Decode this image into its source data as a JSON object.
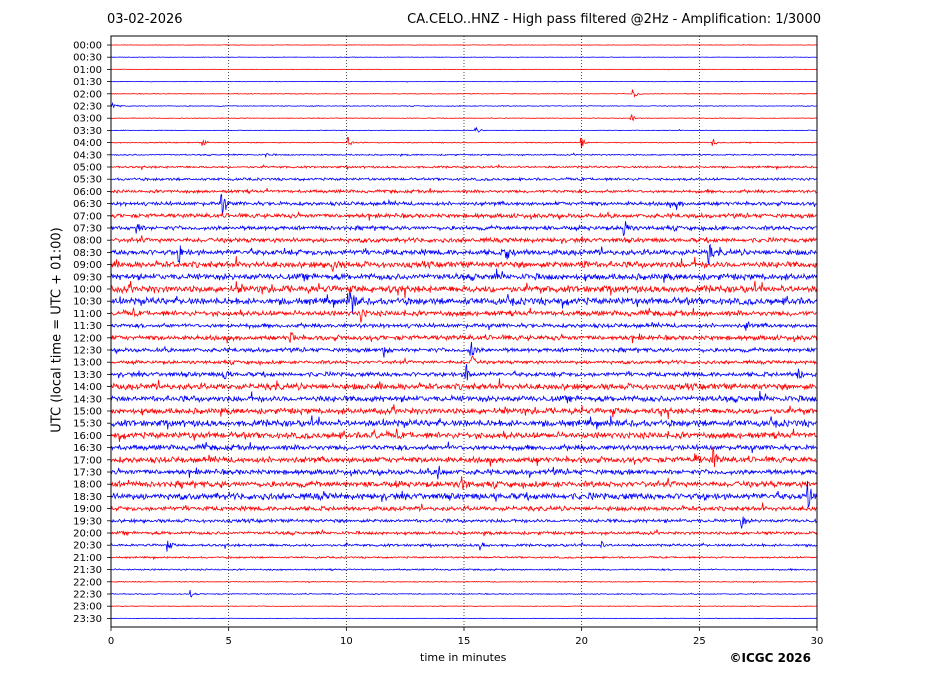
{
  "header": {
    "date": "03-02-2026",
    "title": "CA.CELO..HNZ - High pass filtered @2Hz - Amplification: 1/3000"
  },
  "footer": {
    "copyright": "©ICGC 2026"
  },
  "chart_data": {
    "type": "line",
    "title": "CA.CELO..HNZ - High pass filtered @2Hz - Amplification: 1/3000",
    "xlabel": "time in minutes",
    "ylabel": "UTC (local time = UTC + 01:00)",
    "xlim": [
      0,
      30
    ],
    "xticks": [
      0,
      5,
      10,
      15,
      20,
      25,
      30
    ],
    "vertical_gridlines": [
      5,
      10,
      15,
      20,
      25
    ],
    "grid": "dotted vertical lines at 5-minute intervals",
    "row_labels": [
      "00:00",
      "00:30",
      "01:00",
      "01:30",
      "02:00",
      "02:30",
      "03:00",
      "03:30",
      "04:00",
      "04:30",
      "05:00",
      "05:30",
      "06:00",
      "06:30",
      "07:00",
      "07:30",
      "08:00",
      "08:30",
      "09:00",
      "09:30",
      "10:00",
      "10:30",
      "11:00",
      "11:30",
      "12:00",
      "12:30",
      "13:00",
      "13:30",
      "14:00",
      "14:30",
      "15:00",
      "15:30",
      "16:00",
      "16:30",
      "17:00",
      "17:30",
      "18:00",
      "18:30",
      "19:00",
      "19:30",
      "20:00",
      "20:30",
      "21:00",
      "21:30",
      "22:00",
      "22:30",
      "23:00",
      "23:30"
    ],
    "trace_colors": [
      "#ff0000",
      "#0000ff"
    ],
    "noise_level": [
      0.3,
      0.3,
      0.3,
      0.3,
      0.4,
      0.5,
      0.4,
      0.4,
      0.6,
      0.8,
      1.2,
      1.5,
      1.8,
      2.2,
      2.5,
      2.4,
      2.6,
      3.2,
      3.6,
      3.6,
      4.0,
      4.0,
      3.0,
      2.4,
      2.8,
      2.4,
      2.0,
      2.6,
      3.6,
      3.4,
      3.4,
      3.8,
      3.6,
      3.0,
      3.4,
      3.0,
      3.4,
      3.8,
      2.6,
      2.0,
      1.8,
      1.5,
      1.0,
      0.9,
      0.5,
      0.6,
      0.4,
      0.3
    ],
    "events": [
      {
        "row": 4,
        "minute": 22.2,
        "amp": 6
      },
      {
        "row": 5,
        "minute": 0.1,
        "amp": 4
      },
      {
        "row": 6,
        "minute": 22.1,
        "amp": 5
      },
      {
        "row": 7,
        "minute": 15.5,
        "amp": 4
      },
      {
        "row": 8,
        "minute": 3.9,
        "amp": 4
      },
      {
        "row": 8,
        "minute": 10.1,
        "amp": 5
      },
      {
        "row": 8,
        "minute": 20.0,
        "amp": 5
      },
      {
        "row": 8,
        "minute": 25.6,
        "amp": 4
      },
      {
        "row": 9,
        "minute": 6.6,
        "amp": 3
      },
      {
        "row": 13,
        "minute": 4.7,
        "amp": 13
      },
      {
        "row": 13,
        "minute": 24.0,
        "amp": 6
      },
      {
        "row": 15,
        "minute": 1.1,
        "amp": 7
      },
      {
        "row": 15,
        "minute": 21.8,
        "amp": 12
      },
      {
        "row": 17,
        "minute": 2.9,
        "amp": 9
      },
      {
        "row": 17,
        "minute": 16.8,
        "amp": 9
      },
      {
        "row": 17,
        "minute": 25.4,
        "amp": 9
      },
      {
        "row": 18,
        "minute": 9.4,
        "amp": 7
      },
      {
        "row": 18,
        "minute": 20.0,
        "amp": 8
      },
      {
        "row": 21,
        "minute": 10.2,
        "amp": 18
      },
      {
        "row": 22,
        "minute": 10.6,
        "amp": 9
      },
      {
        "row": 23,
        "minute": 27.0,
        "amp": 6
      },
      {
        "row": 24,
        "minute": 7.6,
        "amp": 8
      },
      {
        "row": 25,
        "minute": 11.6,
        "amp": 8
      },
      {
        "row": 25,
        "minute": 15.3,
        "amp": 10
      },
      {
        "row": 26,
        "minute": 15.3,
        "amp": 9
      },
      {
        "row": 27,
        "minute": 4.8,
        "amp": 7
      },
      {
        "row": 27,
        "minute": 15.1,
        "amp": 9
      },
      {
        "row": 27,
        "minute": 29.2,
        "amp": 8
      },
      {
        "row": 32,
        "minute": 11.1,
        "amp": 8
      },
      {
        "row": 34,
        "minute": 25.6,
        "amp": 11
      },
      {
        "row": 34,
        "minute": 24.8,
        "amp": 5
      },
      {
        "row": 35,
        "minute": 13.9,
        "amp": 8
      },
      {
        "row": 36,
        "minute": 14.9,
        "amp": 9
      },
      {
        "row": 37,
        "minute": 29.6,
        "amp": 14
      },
      {
        "row": 39,
        "minute": 26.8,
        "amp": 7
      },
      {
        "row": 41,
        "minute": 2.4,
        "amp": 6
      },
      {
        "row": 41,
        "minute": 15.7,
        "amp": 5
      },
      {
        "row": 41,
        "minute": 20.8,
        "amp": 5
      },
      {
        "row": 45,
        "minute": 3.4,
        "amp": 4
      }
    ]
  }
}
